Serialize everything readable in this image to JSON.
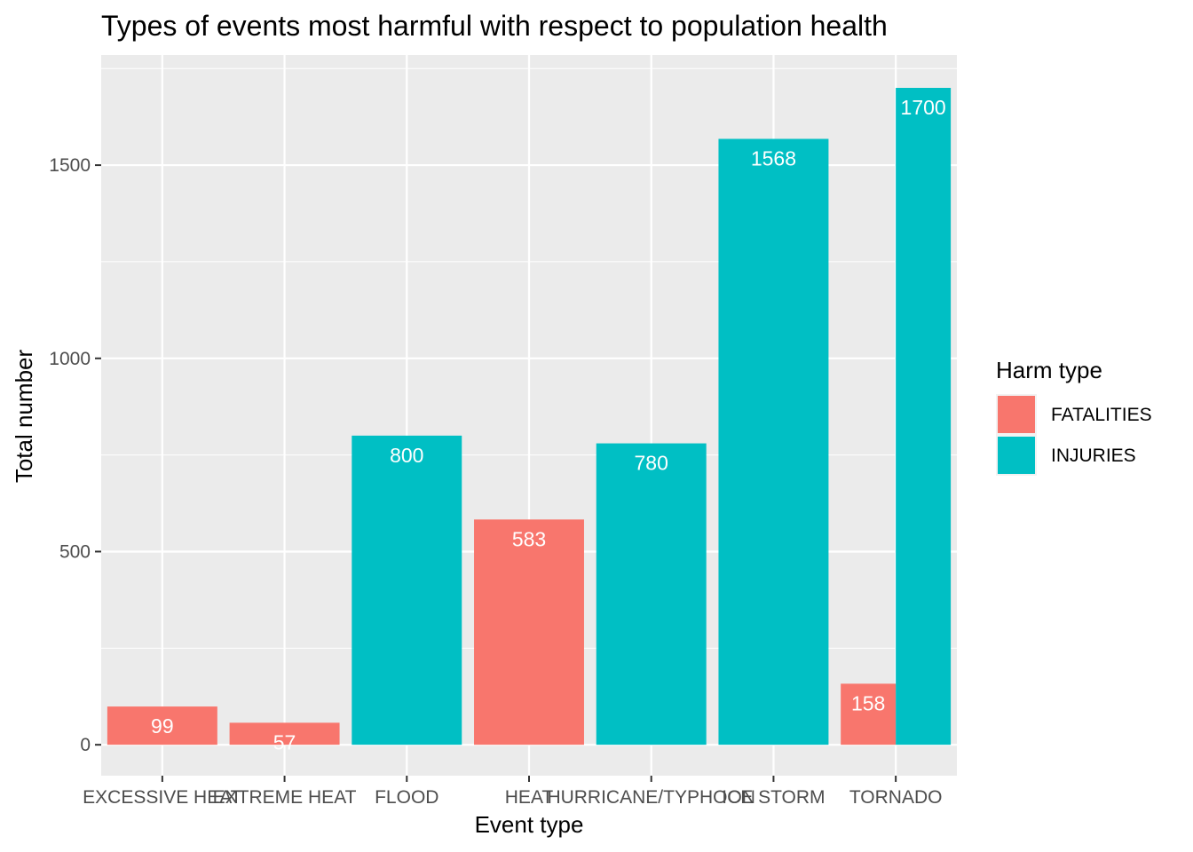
{
  "chart_data": {
    "type": "bar",
    "title": "Types of events most harmful with respect to population health",
    "xlabel": "Event type",
    "ylabel": "Total number",
    "ylim": [
      -80,
      1785
    ],
    "yticks": [
      0,
      500,
      1000,
      1500
    ],
    "grid": true,
    "legend": {
      "title": "Harm type",
      "placement": "right"
    },
    "categories": [
      "EXCESSIVE HEAT",
      "EXTREME HEAT",
      "FLOOD",
      "HEAT",
      "HURRICANE/TYPHOON",
      "ICE STORM",
      "TORNADO"
    ],
    "series": [
      {
        "name": "FATALITIES",
        "color": "#F8766D",
        "values": [
          99,
          57,
          null,
          583,
          null,
          null,
          158
        ]
      },
      {
        "name": "INJURIES",
        "color": "#00BFC4",
        "values": [
          null,
          null,
          800,
          null,
          780,
          1568,
          1700
        ]
      }
    ]
  }
}
